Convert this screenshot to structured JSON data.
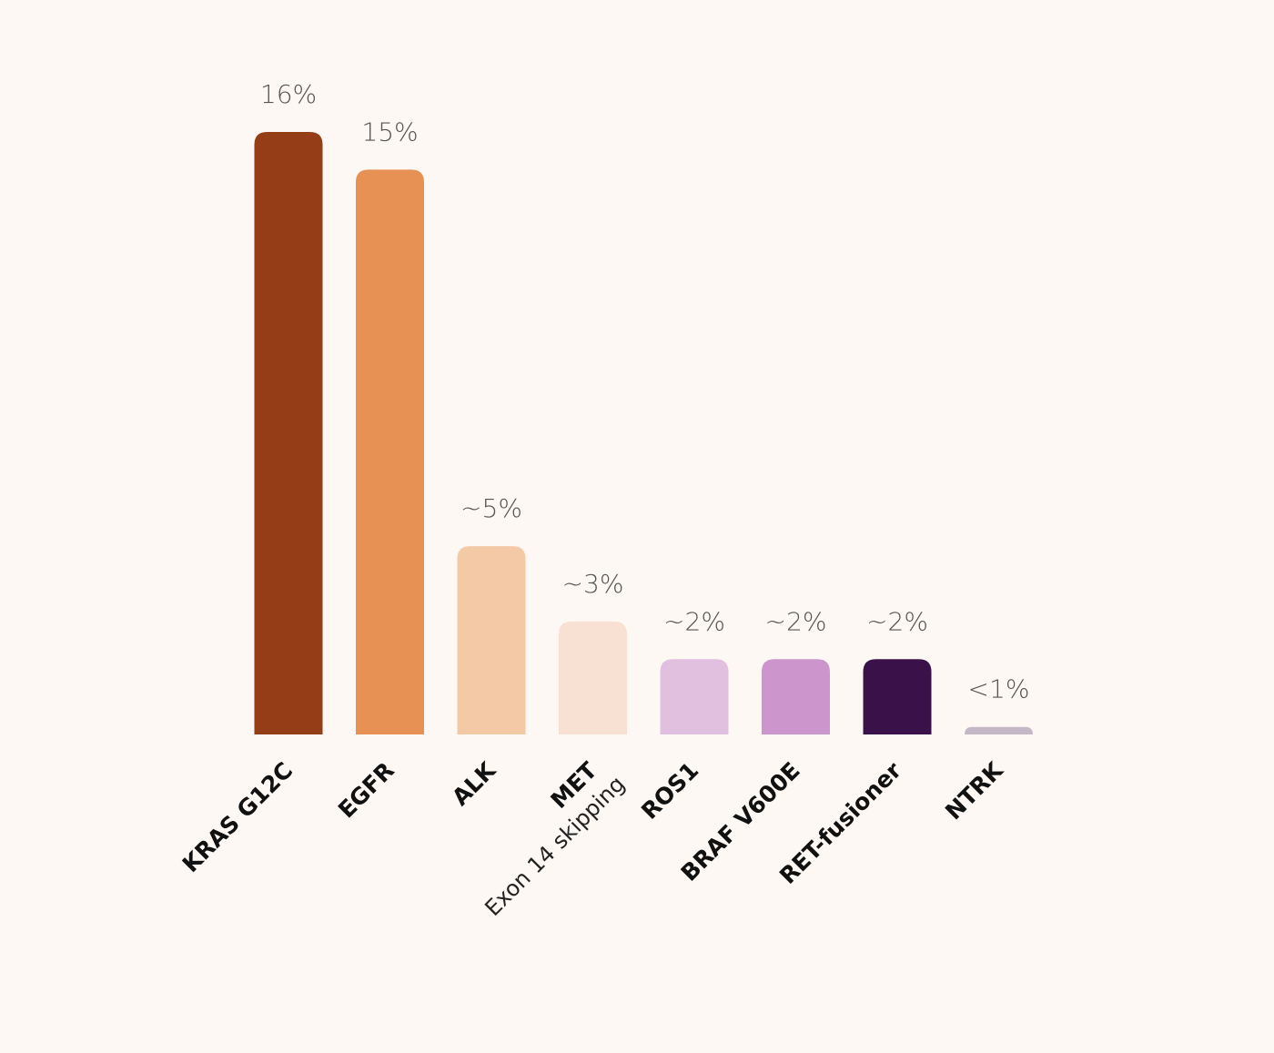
{
  "chart_data": {
    "type": "bar",
    "categories": [
      "KRAS G12C",
      "EGFR",
      "ALK",
      "MET",
      "ROS1",
      "BRAF V600E",
      "RET-fusioner",
      "NTRK"
    ],
    "category_sublabels": [
      null,
      null,
      null,
      "Exon 14 skipping",
      null,
      null,
      null,
      null
    ],
    "values": [
      16,
      15,
      5,
      3,
      2,
      2,
      2,
      0.2
    ],
    "value_labels": [
      "16%",
      "15%",
      "~5%",
      "~3%",
      "~2%",
      "~2%",
      "~2%",
      "<1%"
    ],
    "colors": [
      "#943d17",
      "#e89154",
      "#f3c9a6",
      "#f8e0d2",
      "#e1bfde",
      "#cc96cc",
      "#3a1249",
      "#c6b7c7"
    ]
  }
}
